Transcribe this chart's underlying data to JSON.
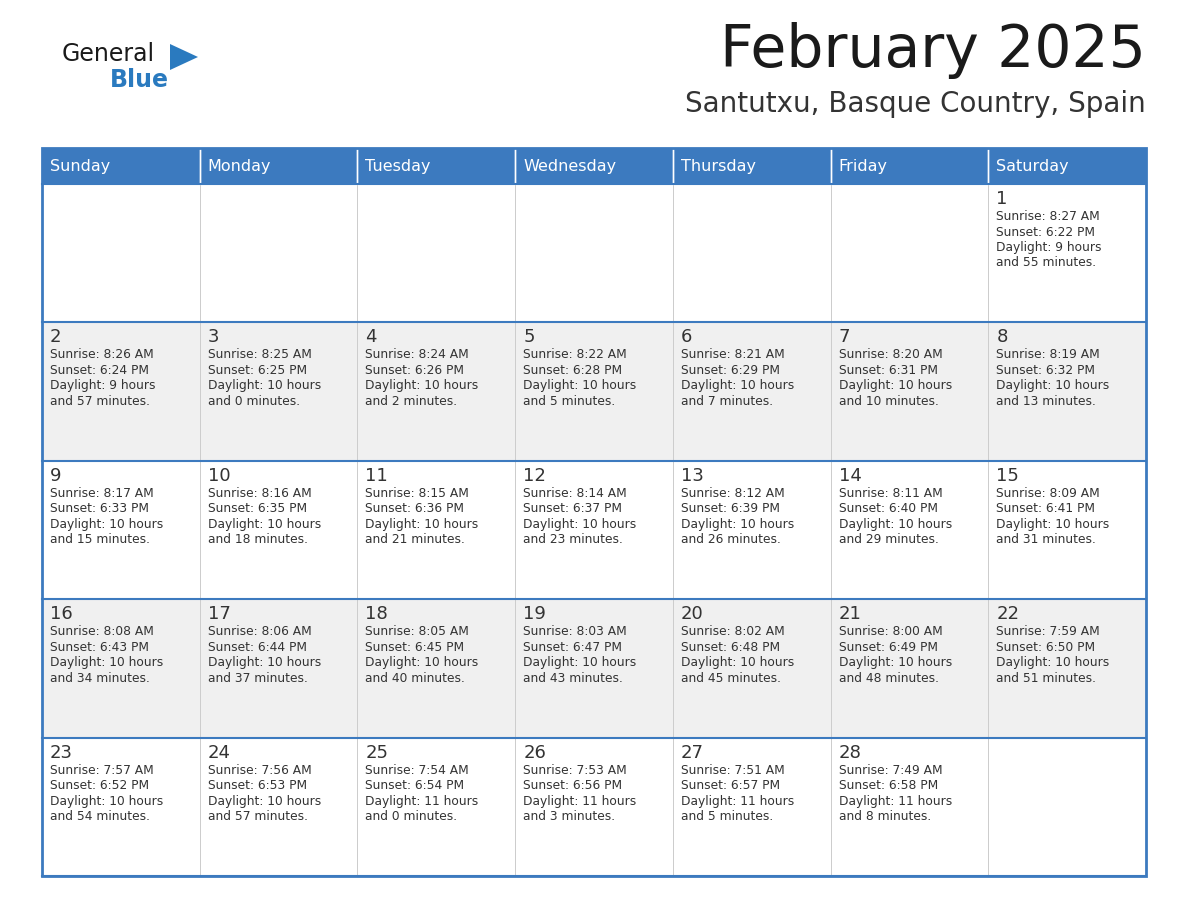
{
  "title": "February 2025",
  "subtitle": "Santutxu, Basque Country, Spain",
  "header_bg": "#3c7abf",
  "header_text": "#ffffff",
  "cell_bg_white": "#ffffff",
  "cell_bg_light": "#f0f0f0",
  "border_color_dark": "#3c7abf",
  "border_color_light": "#cccccc",
  "day_headers": [
    "Sunday",
    "Monday",
    "Tuesday",
    "Wednesday",
    "Thursday",
    "Friday",
    "Saturday"
  ],
  "title_color": "#1a1a1a",
  "subtitle_color": "#333333",
  "day_num_color": "#333333",
  "cell_text_color": "#333333",
  "logo_text_color": "#1a1a1a",
  "logo_blue_color": "#2a7abf",
  "calendar_data": [
    [
      null,
      null,
      null,
      null,
      null,
      null,
      {
        "day": "1",
        "sunrise": "8:27 AM",
        "sunset": "6:22 PM",
        "daylight1": "9 hours",
        "daylight2": "and 55 minutes."
      }
    ],
    [
      {
        "day": "2",
        "sunrise": "8:26 AM",
        "sunset": "6:24 PM",
        "daylight1": "9 hours",
        "daylight2": "and 57 minutes."
      },
      {
        "day": "3",
        "sunrise": "8:25 AM",
        "sunset": "6:25 PM",
        "daylight1": "10 hours",
        "daylight2": "and 0 minutes."
      },
      {
        "day": "4",
        "sunrise": "8:24 AM",
        "sunset": "6:26 PM",
        "daylight1": "10 hours",
        "daylight2": "and 2 minutes."
      },
      {
        "day": "5",
        "sunrise": "8:22 AM",
        "sunset": "6:28 PM",
        "daylight1": "10 hours",
        "daylight2": "and 5 minutes."
      },
      {
        "day": "6",
        "sunrise": "8:21 AM",
        "sunset": "6:29 PM",
        "daylight1": "10 hours",
        "daylight2": "and 7 minutes."
      },
      {
        "day": "7",
        "sunrise": "8:20 AM",
        "sunset": "6:31 PM",
        "daylight1": "10 hours",
        "daylight2": "and 10 minutes."
      },
      {
        "day": "8",
        "sunrise": "8:19 AM",
        "sunset": "6:32 PM",
        "daylight1": "10 hours",
        "daylight2": "and 13 minutes."
      }
    ],
    [
      {
        "day": "9",
        "sunrise": "8:17 AM",
        "sunset": "6:33 PM",
        "daylight1": "10 hours",
        "daylight2": "and 15 minutes."
      },
      {
        "day": "10",
        "sunrise": "8:16 AM",
        "sunset": "6:35 PM",
        "daylight1": "10 hours",
        "daylight2": "and 18 minutes."
      },
      {
        "day": "11",
        "sunrise": "8:15 AM",
        "sunset": "6:36 PM",
        "daylight1": "10 hours",
        "daylight2": "and 21 minutes."
      },
      {
        "day": "12",
        "sunrise": "8:14 AM",
        "sunset": "6:37 PM",
        "daylight1": "10 hours",
        "daylight2": "and 23 minutes."
      },
      {
        "day": "13",
        "sunrise": "8:12 AM",
        "sunset": "6:39 PM",
        "daylight1": "10 hours",
        "daylight2": "and 26 minutes."
      },
      {
        "day": "14",
        "sunrise": "8:11 AM",
        "sunset": "6:40 PM",
        "daylight1": "10 hours",
        "daylight2": "and 29 minutes."
      },
      {
        "day": "15",
        "sunrise": "8:09 AM",
        "sunset": "6:41 PM",
        "daylight1": "10 hours",
        "daylight2": "and 31 minutes."
      }
    ],
    [
      {
        "day": "16",
        "sunrise": "8:08 AM",
        "sunset": "6:43 PM",
        "daylight1": "10 hours",
        "daylight2": "and 34 minutes."
      },
      {
        "day": "17",
        "sunrise": "8:06 AM",
        "sunset": "6:44 PM",
        "daylight1": "10 hours",
        "daylight2": "and 37 minutes."
      },
      {
        "day": "18",
        "sunrise": "8:05 AM",
        "sunset": "6:45 PM",
        "daylight1": "10 hours",
        "daylight2": "and 40 minutes."
      },
      {
        "day": "19",
        "sunrise": "8:03 AM",
        "sunset": "6:47 PM",
        "daylight1": "10 hours",
        "daylight2": "and 43 minutes."
      },
      {
        "day": "20",
        "sunrise": "8:02 AM",
        "sunset": "6:48 PM",
        "daylight1": "10 hours",
        "daylight2": "and 45 minutes."
      },
      {
        "day": "21",
        "sunrise": "8:00 AM",
        "sunset": "6:49 PM",
        "daylight1": "10 hours",
        "daylight2": "and 48 minutes."
      },
      {
        "day": "22",
        "sunrise": "7:59 AM",
        "sunset": "6:50 PM",
        "daylight1": "10 hours",
        "daylight2": "and 51 minutes."
      }
    ],
    [
      {
        "day": "23",
        "sunrise": "7:57 AM",
        "sunset": "6:52 PM",
        "daylight1": "10 hours",
        "daylight2": "and 54 minutes."
      },
      {
        "day": "24",
        "sunrise": "7:56 AM",
        "sunset": "6:53 PM",
        "daylight1": "10 hours",
        "daylight2": "and 57 minutes."
      },
      {
        "day": "25",
        "sunrise": "7:54 AM",
        "sunset": "6:54 PM",
        "daylight1": "11 hours",
        "daylight2": "and 0 minutes."
      },
      {
        "day": "26",
        "sunrise": "7:53 AM",
        "sunset": "6:56 PM",
        "daylight1": "11 hours",
        "daylight2": "and 3 minutes."
      },
      {
        "day": "27",
        "sunrise": "7:51 AM",
        "sunset": "6:57 PM",
        "daylight1": "11 hours",
        "daylight2": "and 5 minutes."
      },
      {
        "day": "28",
        "sunrise": "7:49 AM",
        "sunset": "6:58 PM",
        "daylight1": "11 hours",
        "daylight2": "and 8 minutes."
      },
      null
    ]
  ],
  "figsize": [
    11.88,
    9.18
  ],
  "dpi": 100
}
